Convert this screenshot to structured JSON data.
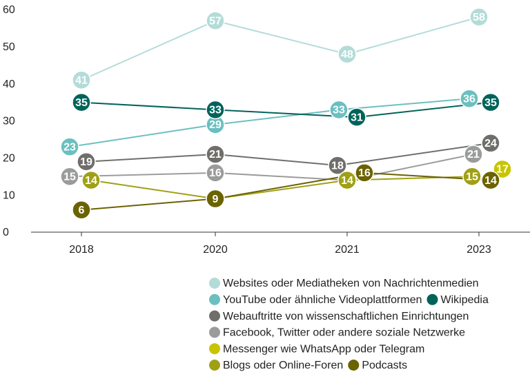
{
  "chart_data": {
    "type": "line",
    "categories": [
      "2018",
      "2020",
      "2021",
      "2023"
    ],
    "ylim": [
      0,
      60
    ],
    "yticks": [
      0,
      10,
      20,
      30,
      40,
      50,
      60
    ],
    "series": [
      {
        "name": "Websites oder Mediatheken von Nachrichtenmedien",
        "color": "#b3dcd9",
        "values": [
          41,
          57,
          48,
          58
        ]
      },
      {
        "name": "YouTube oder ähnliche Videoplattformen",
        "color": "#6bbfc0",
        "values": [
          23,
          29,
          33,
          36
        ]
      },
      {
        "name": "Wikipedia",
        "color": "#00635a",
        "values": [
          35,
          33,
          31,
          35
        ]
      },
      {
        "name": "Webauftritte von wissenschaftlichen Einrichtungen",
        "color": "#6f6e6a",
        "values": [
          19,
          21,
          18,
          24
        ]
      },
      {
        "name": "Facebook, Twitter oder andere soziale Netzwerke",
        "color": "#9a9c9b",
        "values": [
          15,
          16,
          14,
          21
        ]
      },
      {
        "name": "Messenger wie WhatsApp oder Telegram",
        "color": "#c8c400",
        "values": [
          null,
          null,
          null,
          17
        ]
      },
      {
        "name": "Blogs oder Online-Foren",
        "color": "#a0a015",
        "values": [
          14,
          9,
          14,
          15
        ]
      },
      {
        "name": "Podcasts",
        "color": "#6b6200",
        "values": [
          6,
          9,
          16,
          14
        ]
      }
    ]
  }
}
